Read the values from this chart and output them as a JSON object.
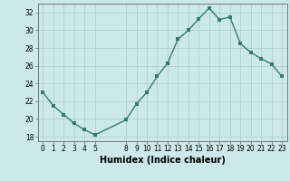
{
  "x": [
    0,
    1,
    2,
    3,
    4,
    5,
    8,
    9,
    10,
    11,
    12,
    13,
    14,
    15,
    16,
    17,
    18,
    19,
    20,
    21,
    22,
    23
  ],
  "y": [
    23.0,
    21.5,
    20.5,
    19.5,
    18.8,
    18.2,
    19.9,
    21.7,
    23.0,
    24.8,
    26.3,
    29.0,
    30.0,
    31.3,
    32.5,
    31.2,
    31.5,
    28.5,
    27.5,
    26.8,
    26.2,
    24.8
  ],
  "line_color": "#2e7d6e",
  "marker_color": "#2e7d6e",
  "bg_color": "#cce8e8",
  "grid_color": "#aacccc",
  "xlabel": "Humidex (Indice chaleur)",
  "xlim": [
    -0.5,
    23.5
  ],
  "ylim": [
    17.5,
    33.0
  ],
  "yticks": [
    18,
    20,
    22,
    24,
    26,
    28,
    30,
    32
  ],
  "xticks": [
    0,
    1,
    2,
    3,
    4,
    5,
    8,
    9,
    10,
    11,
    12,
    13,
    14,
    15,
    16,
    17,
    18,
    19,
    20,
    21,
    22,
    23
  ],
  "tick_fontsize": 5.5,
  "xlabel_fontsize": 7.0,
  "linewidth": 1.0,
  "markersize": 2.5
}
